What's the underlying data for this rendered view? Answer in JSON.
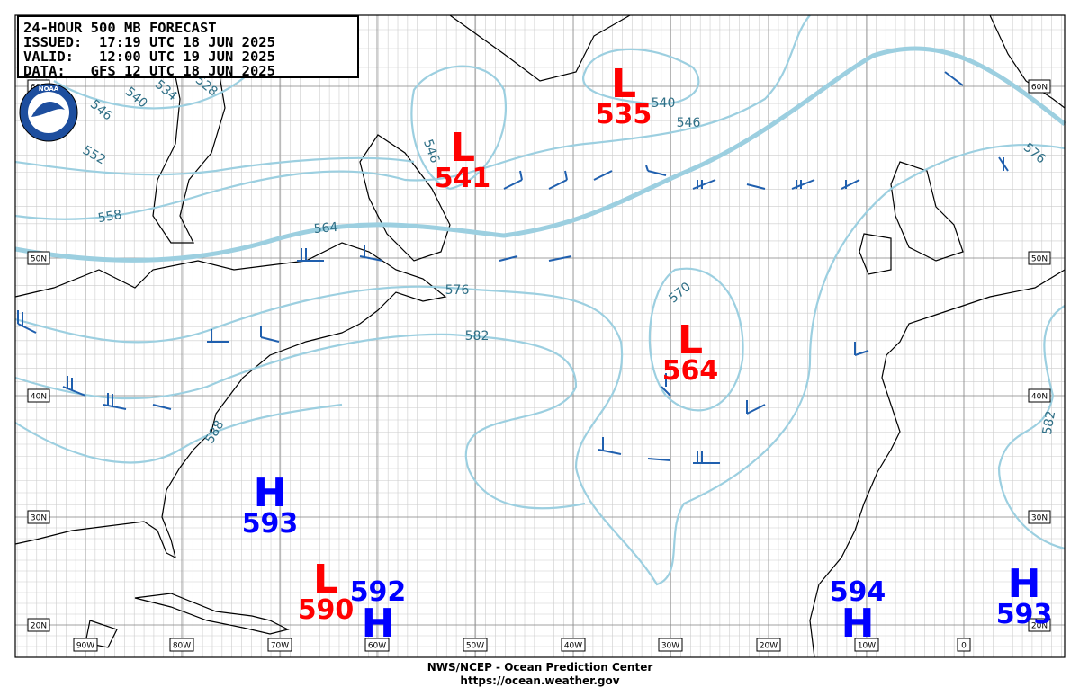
{
  "header": {
    "lines": [
      "24-HOUR 500 MB FORECAST",
      "ISSUED:  17:19 UTC 18 JUN 2025",
      "VALID:   12:00 UTC 19 JUN 2025",
      "DATA:   GFS 12 UTC 18 JUN 2025"
    ]
  },
  "logo": "NOAA",
  "centers": [
    {
      "type": "L",
      "value": 535
    },
    {
      "type": "L",
      "value": 541
    },
    {
      "type": "L",
      "value": 564
    },
    {
      "type": "H",
      "value": 593
    },
    {
      "type": "L",
      "value": 590
    },
    {
      "type": "H",
      "value": 592
    },
    {
      "type": "H",
      "value": 594
    },
    {
      "type": "H",
      "value": 593
    }
  ],
  "contour_labels": [
    546,
    540,
    534,
    528,
    552,
    558,
    564,
    546,
    540,
    546,
    576,
    582,
    570,
    576,
    582,
    588
  ],
  "lat_labels": [
    "60N",
    "50N",
    "40N",
    "30N",
    "20N"
  ],
  "lon_labels": [
    "90W",
    "80W",
    "70W",
    "60W",
    "50W",
    "40W",
    "30W",
    "20W",
    "10W",
    "0"
  ],
  "footer": [
    "NWS/NCEP - Ocean Prediction Center",
    "https://ocean.weather.gov"
  ]
}
